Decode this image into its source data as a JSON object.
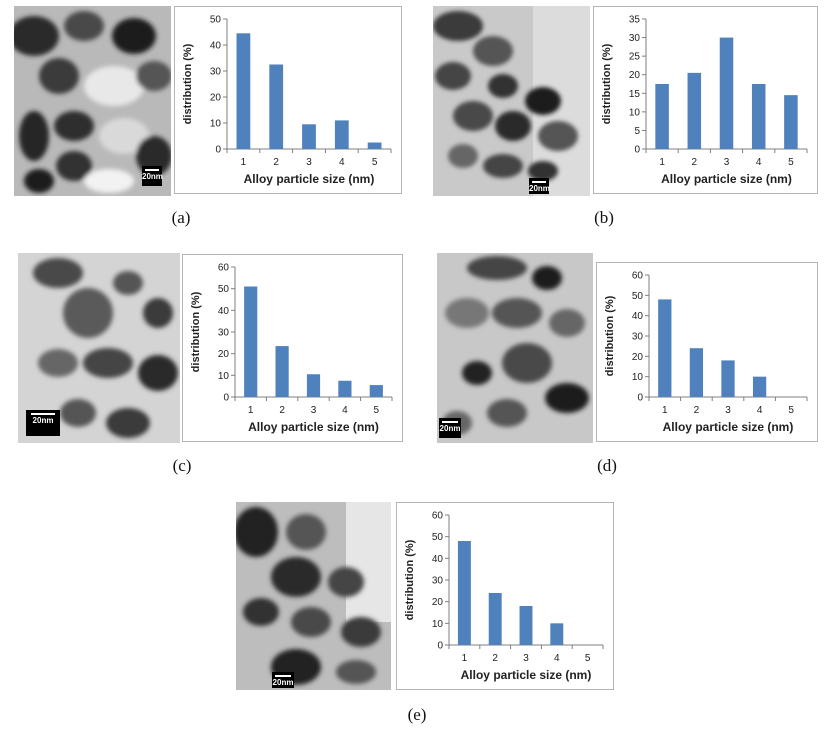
{
  "figure": {
    "panels": [
      {
        "caption": "(a)",
        "scale_label": "20nm"
      },
      {
        "caption": "(b)",
        "scale_label": "20nm"
      },
      {
        "caption": "(c)",
        "scale_label": "20nm"
      },
      {
        "caption": "(d)",
        "scale_label": "20nm"
      },
      {
        "caption": "(e)",
        "scale_label": "20nm"
      }
    ],
    "colors": {
      "bar": "#4f81bd",
      "axis": "#7f7f7f",
      "border": "#b5b5b5"
    }
  },
  "chart_data": [
    {
      "type": "bar",
      "categories": [
        "1",
        "2",
        "3",
        "4",
        "5"
      ],
      "values": [
        44.5,
        32.5,
        9.5,
        11,
        2.5
      ],
      "xlabel": "Alloy particle size (nm)",
      "ylabel": "distribution (%)",
      "ylim": [
        0,
        50
      ],
      "yticks": [
        0,
        10,
        20,
        30,
        40,
        50
      ],
      "grid": false
    },
    {
      "type": "bar",
      "categories": [
        "1",
        "2",
        "3",
        "4",
        "5"
      ],
      "values": [
        17.5,
        20.5,
        30,
        17.5,
        14.5
      ],
      "xlabel": "Alloy particle size (nm)",
      "ylabel": "distribution (%)",
      "ylim": [
        0,
        35
      ],
      "yticks": [
        0,
        5,
        10,
        15,
        20,
        25,
        30,
        35
      ],
      "grid": false
    },
    {
      "type": "bar",
      "categories": [
        "1",
        "2",
        "3",
        "4",
        "5"
      ],
      "values": [
        51,
        23.5,
        10.5,
        7.5,
        5.5
      ],
      "xlabel": "Alloy particle size (nm)",
      "ylabel": "distribution (%)",
      "ylim": [
        0,
        60
      ],
      "yticks": [
        0,
        10,
        20,
        30,
        40,
        50,
        60
      ],
      "grid": false
    },
    {
      "type": "bar",
      "categories": [
        "1",
        "2",
        "3",
        "4",
        "5"
      ],
      "values": [
        48,
        24,
        18,
        10,
        0
      ],
      "xlabel": "Alloy particle size (nm)",
      "ylabel": "distribution (%)",
      "ylim": [
        0,
        60
      ],
      "yticks": [
        0,
        10,
        20,
        30,
        40,
        50,
        60
      ],
      "grid": false
    },
    {
      "type": "bar",
      "categories": [
        "1",
        "2",
        "3",
        "4",
        "5"
      ],
      "values": [
        48,
        24,
        18,
        10,
        0
      ],
      "xlabel": "Alloy particle size (nm)",
      "ylabel": "distribution (%)",
      "ylim": [
        0,
        60
      ],
      "yticks": [
        0,
        10,
        20,
        30,
        40,
        50,
        60
      ],
      "grid": false
    }
  ]
}
